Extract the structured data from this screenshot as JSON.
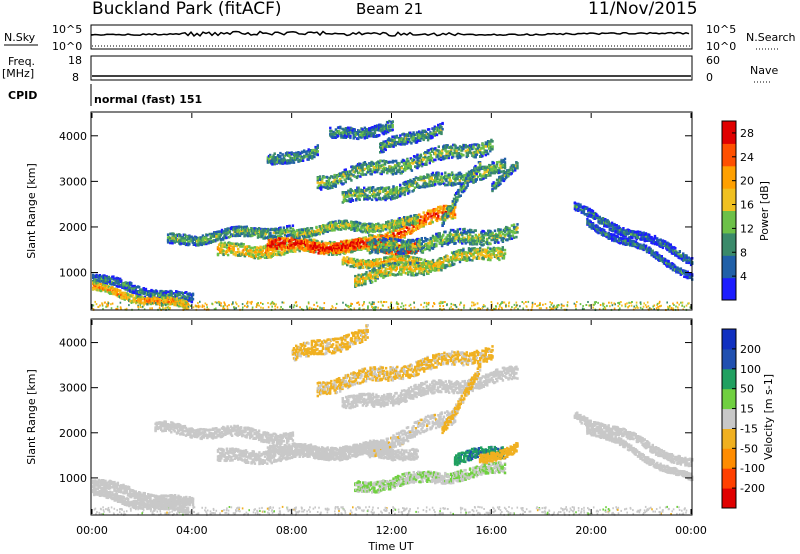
{
  "header": {
    "site": "Buckland Park (fitACF)",
    "beam": "Beam 21",
    "date": "11/Nov/2015"
  },
  "left_labels": {
    "nsky": "N.Sky",
    "nsky_top": "10^5",
    "nsky_bottom": "10^0",
    "freq": "Freq.",
    "freq_unit": "[MHz]",
    "freq_top": "18",
    "freq_bottom": "8",
    "cpid": "CPID"
  },
  "right_labels": {
    "nsearch": "N.Search",
    "nsearch_top": "10^5",
    "nsearch_bottom": "10^0",
    "nave": "Nave",
    "nave_top": "60",
    "nave_bottom": "0"
  },
  "cpid_text": "normal (fast) 151",
  "colors": {
    "power": [
      "#1c1cff",
      "#2060a8",
      "#3a8a6a",
      "#6cc048",
      "#f0c020",
      "#ffa000",
      "#ff5000",
      "#e00000"
    ],
    "velocity": [
      "#e00000",
      "#ff4000",
      "#ff8c00",
      "#f0b020",
      "#c8c8c8",
      "#70d040",
      "#20a060",
      "#2050b0",
      "#1030c0"
    ]
  },
  "chart_data": [
    {
      "type": "heatmap",
      "panel": "power",
      "ylabel": "Slant Range [km]",
      "yticks": [
        "1000",
        "2000",
        "3000",
        "4000"
      ],
      "ylim": [
        200,
        4500
      ],
      "xlim": [
        0,
        24
      ],
      "colorbar": {
        "label": "Power [dB]",
        "ticks": [
          "4",
          "8",
          "12",
          "16",
          "20",
          "24",
          "28"
        ],
        "range": [
          0,
          30
        ]
      },
      "echo_bands": [
        {
          "t0": 0.0,
          "t1": 4.0,
          "r0": 850,
          "r1": 380,
          "width": 100,
          "level": 10
        },
        {
          "t0": 0.0,
          "t1": 3.8,
          "r0": 650,
          "r1": 250,
          "width": 80,
          "level": 22
        },
        {
          "t0": 3.0,
          "t1": 8.0,
          "r0": 1700,
          "r1": 1950,
          "width": 110,
          "level": 13
        },
        {
          "t0": 5.0,
          "t1": 12.0,
          "r0": 1450,
          "r1": 1650,
          "width": 140,
          "level": 20
        },
        {
          "t0": 7.0,
          "t1": 13.0,
          "r0": 1600,
          "r1": 1550,
          "width": 120,
          "level": 29
        },
        {
          "t0": 11.0,
          "t1": 14.5,
          "r0": 1600,
          "r1": 2400,
          "width": 160,
          "level": 26
        },
        {
          "t0": 8.0,
          "t1": 13.0,
          "r0": 1900,
          "r1": 2100,
          "width": 100,
          "level": 16
        },
        {
          "t0": 10.0,
          "t1": 14.0,
          "r0": 1250,
          "r1": 1200,
          "width": 90,
          "level": 20
        },
        {
          "t0": 10.5,
          "t1": 16.5,
          "r0": 850,
          "r1": 1500,
          "width": 140,
          "level": 18
        },
        {
          "t0": 11.0,
          "t1": 17.0,
          "r0": 1500,
          "r1": 1900,
          "width": 160,
          "level": 14
        },
        {
          "t0": 9.0,
          "t1": 16.0,
          "r0": 3000,
          "r1": 3800,
          "width": 150,
          "level": 14
        },
        {
          "t0": 10.0,
          "t1": 16.5,
          "r0": 2600,
          "r1": 3300,
          "width": 140,
          "level": 14
        },
        {
          "t0": 7.0,
          "t1": 9.0,
          "r0": 3400,
          "r1": 3700,
          "width": 120,
          "level": 12
        },
        {
          "t0": 9.5,
          "t1": 12.0,
          "r0": 4000,
          "r1": 4200,
          "width": 120,
          "level": 11
        },
        {
          "t0": 11.5,
          "t1": 14.0,
          "r0": 3700,
          "r1": 4200,
          "width": 120,
          "level": 12
        },
        {
          "t0": 14.0,
          "t1": 15.5,
          "r0": 2100,
          "r1": 3400,
          "width": 110,
          "level": 13
        },
        {
          "t0": 16.0,
          "t1": 17.0,
          "r0": 2900,
          "r1": 3300,
          "width": 90,
          "level": 12
        },
        {
          "t0": 19.3,
          "t1": 24.0,
          "r0": 2400,
          "r1": 1300,
          "width": 90,
          "level": 9
        },
        {
          "t0": 19.8,
          "t1": 24.0,
          "r0": 2100,
          "r1": 950,
          "width": 70,
          "level": 9
        }
      ]
    },
    {
      "type": "heatmap",
      "panel": "velocity",
      "ylabel": "Slant Range [km]",
      "yticks": [
        "1000",
        "2000",
        "3000",
        "4000"
      ],
      "ylim": [
        200,
        4500
      ],
      "xlim": [
        0,
        24
      ],
      "xticks": [
        "00:00",
        "04:00",
        "08:00",
        "12:00",
        "16:00",
        "20:00",
        "00:00"
      ],
      "xlabel": "Time UT",
      "colorbar": {
        "label": "Velocity [m s-1]",
        "ticks": [
          "-200",
          "-100",
          "-50",
          "-15",
          "15",
          "50",
          "100",
          "200"
        ],
        "range": [
          -250,
          250
        ]
      },
      "echo_bands": [
        {
          "t0": 0.0,
          "t1": 4.0,
          "r0": 850,
          "r1": 400,
          "width": 100,
          "level": 0
        },
        {
          "t0": 0.0,
          "t1": 3.8,
          "r0": 650,
          "r1": 250,
          "width": 80,
          "level": 0
        },
        {
          "t0": 2.5,
          "t1": 8.0,
          "r0": 2100,
          "r1": 1900,
          "width": 110,
          "level": 0
        },
        {
          "t0": 5.0,
          "t1": 12.0,
          "r0": 1450,
          "r1": 1650,
          "width": 140,
          "level": 0
        },
        {
          "t0": 7.0,
          "t1": 13.0,
          "r0": 1600,
          "r1": 1550,
          "width": 120,
          "level": 0
        },
        {
          "t0": 11.0,
          "t1": 14.5,
          "r0": 1600,
          "r1": 2400,
          "width": 160,
          "level": -10
        },
        {
          "t0": 10.5,
          "t1": 16.5,
          "r0": 800,
          "r1": 1200,
          "width": 120,
          "level": 25
        },
        {
          "t0": 14.5,
          "t1": 16.5,
          "r0": 1400,
          "r1": 1600,
          "width": 120,
          "level": 130
        },
        {
          "t0": 15.5,
          "t1": 17.0,
          "r0": 1400,
          "r1": 1700,
          "width": 100,
          "level": -60
        },
        {
          "t0": 8.0,
          "t1": 11.0,
          "r0": 3700,
          "r1": 4200,
          "width": 160,
          "level": -40
        },
        {
          "t0": 9.0,
          "t1": 16.0,
          "r0": 3000,
          "r1": 3800,
          "width": 150,
          "level": -35
        },
        {
          "t0": 10.0,
          "t1": 17.0,
          "r0": 2600,
          "r1": 3300,
          "width": 140,
          "level": 0
        },
        {
          "t0": 14.0,
          "t1": 15.5,
          "r0": 2100,
          "r1": 3400,
          "width": 110,
          "level": -40
        },
        {
          "t0": 19.3,
          "t1": 24.0,
          "r0": 2400,
          "r1": 1300,
          "width": 90,
          "level": 0
        },
        {
          "t0": 19.8,
          "t1": 24.0,
          "r0": 2100,
          "r1": 950,
          "width": 70,
          "level": 0
        }
      ]
    }
  ]
}
